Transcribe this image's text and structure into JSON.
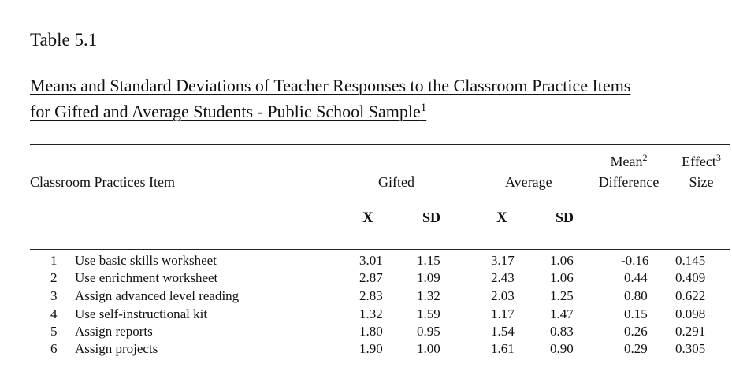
{
  "table": {
    "label": "Table 5.1",
    "title_line1": "Means and Standard Deviations of Teacher Responses to the Classroom Practice Items",
    "title_line2": "for Gifted and Average Students - Public School Sample",
    "title_footnote": "1",
    "headers": {
      "item": "Classroom Practices Item",
      "gifted": "Gifted",
      "average": "Average",
      "mean_diff_line1": "Mean",
      "mean_diff_footnote": "2",
      "mean_diff_line2": "Difference",
      "effect_line1": "Effect",
      "effect_footnote": "3",
      "effect_line2": "Size",
      "x_symbol": "X",
      "sd": "SD"
    },
    "rows": [
      {
        "num": "1",
        "item": "Use basic skills worksheet",
        "g_x": "3.01",
        "g_sd": "1.15",
        "a_x": "3.17",
        "a_sd": "1.06",
        "diff": "-0.16",
        "effect": "0.145"
      },
      {
        "num": "2",
        "item": "Use enrichment worksheet",
        "g_x": "2.87",
        "g_sd": "1.09",
        "a_x": "2.43",
        "a_sd": "1.06",
        "diff": "0.44",
        "effect": "0.409"
      },
      {
        "num": "3",
        "item": "Assign advanced level reading",
        "g_x": "2.83",
        "g_sd": "1.32",
        "a_x": "2.03",
        "a_sd": "1.25",
        "diff": "0.80",
        "effect": "0.622"
      },
      {
        "num": "4",
        "item": "Use self-instructional kit",
        "g_x": "1.32",
        "g_sd": "1.59",
        "a_x": "1.17",
        "a_sd": "1.47",
        "diff": "0.15",
        "effect": "0.098"
      },
      {
        "num": "5",
        "item": "Assign reports",
        "g_x": "1.80",
        "g_sd": "0.95",
        "a_x": "1.54",
        "a_sd": "0.83",
        "diff": "0.26",
        "effect": "0.291"
      },
      {
        "num": "6",
        "item": "Assign projects",
        "g_x": "1.90",
        "g_sd": "1.00",
        "a_x": "1.61",
        "a_sd": "0.90",
        "diff": "0.29",
        "effect": "0.305"
      }
    ]
  }
}
